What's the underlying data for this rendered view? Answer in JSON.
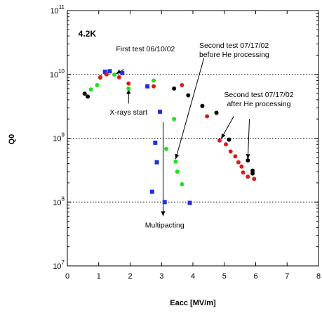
{
  "chart_data": {
    "type": "scatter",
    "title": "",
    "xlabel": "Eacc [MV/m]",
    "ylabel": "Q0",
    "x_scale": "linear",
    "y_scale": "log",
    "xlim": [
      0,
      8
    ],
    "ylim": [
      10000000.0,
      100000000000.0
    ],
    "x_ticks": [
      "0",
      "1",
      "2",
      "3",
      "4",
      "5",
      "6",
      "7",
      "8"
    ],
    "y_ticks": [
      {
        "value": 10000000.0,
        "base": "10",
        "exp": "7"
      },
      {
        "value": 100000000.0,
        "base": "10",
        "exp": "8"
      },
      {
        "value": 1000000000.0,
        "base": "10",
        "exp": "9"
      },
      {
        "value": 10000000000.0,
        "base": "10",
        "exp": "10"
      },
      {
        "value": 100000000000.0,
        "base": "10",
        "exp": "11"
      }
    ],
    "grid": "horizontal dotted at each decade",
    "series": [
      {
        "name": "",
        "color": "#1f2fe0",
        "marker": "square",
        "points": [
          [
            1.2,
            11000000000.0
          ],
          [
            1.35,
            11200000000.0
          ],
          [
            1.75,
            10500000000.0
          ],
          [
            2.55,
            6500000000.0
          ],
          [
            2.95,
            2600000000.0
          ],
          [
            2.8,
            850000000.0
          ],
          [
            2.85,
            420000000.0
          ],
          [
            2.7,
            145000000.0
          ],
          [
            3.1,
            100000000.0
          ],
          [
            3.9,
            97000000.0
          ]
        ]
      },
      {
        "name": "",
        "color": "#22e01a",
        "marker": "circle",
        "points": [
          [
            0.75,
            5800000000.0
          ],
          [
            0.95,
            6800000000.0
          ],
          [
            1.05,
            8800000000.0
          ],
          [
            1.5,
            9900000000.0
          ],
          [
            1.95,
            6000000000.0
          ],
          [
            2.75,
            8000000000.0
          ],
          [
            3.15,
            680000000.0
          ],
          [
            3.45,
            430000000.0
          ],
          [
            3.5,
            300000000.0
          ],
          [
            3.65,
            190000000.0
          ],
          [
            3.4,
            2000000000.0
          ]
        ]
      },
      {
        "name": "",
        "color": "#000000",
        "marker": "circle",
        "points": [
          [
            0.55,
            5000000000.0
          ],
          [
            0.65,
            4500000000.0
          ],
          [
            3.4,
            6000000000.0
          ],
          [
            3.85,
            4700000000.0
          ],
          [
            4.3,
            3200000000.0
          ],
          [
            4.75,
            2500000000.0
          ],
          [
            5.15,
            950000000.0
          ],
          [
            5.75,
            450000000.0
          ],
          [
            5.9,
            310000000.0
          ],
          [
            5.9,
            280000000.0
          ]
        ]
      },
      {
        "name": "",
        "color": "#e01a1a",
        "marker": "circle",
        "points": [
          [
            1.05,
            9000000000.0
          ],
          [
            1.25,
            10000000000.0
          ],
          [
            1.65,
            9000000000.0
          ],
          [
            1.95,
            7200000000.0
          ],
          [
            2.75,
            6500000000.0
          ],
          [
            3.65,
            6800000000.0
          ],
          [
            4.45,
            2200000000.0
          ],
          [
            4.85,
            920000000.0
          ],
          [
            5.05,
            800000000.0
          ],
          [
            5.2,
            620000000.0
          ],
          [
            5.35,
            520000000.0
          ],
          [
            5.45,
            420000000.0
          ],
          [
            5.55,
            360000000.0
          ],
          [
            5.6,
            290000000.0
          ],
          [
            5.75,
            250000000.0
          ],
          [
            5.95,
            230000000.0
          ]
        ]
      }
    ],
    "annotations": [
      {
        "lines": [
          "4.2K"
        ],
        "bold": true,
        "x": 0.35,
        "y": 39000000000.0,
        "anchor": "start"
      },
      {
        "lines": [
          "First test 06/10/02"
        ],
        "x": 1.55,
        "y": 23000000000.0,
        "anchor": "start"
      },
      {
        "lines": [
          "Second test 07/17/02",
          "before He processing"
        ],
        "x": 4.2,
        "y": 26000000000.0,
        "anchor": "start"
      },
      {
        "lines": [
          "X-rays start"
        ],
        "x": 1.95,
        "y": 2350000000.0,
        "anchor": "middle"
      },
      {
        "lines": [
          "Second test 07/17/02",
          "after He processing"
        ],
        "x": 6.1,
        "y": 4400000000.0,
        "anchor": "middle"
      },
      {
        "lines": [
          "Multipacting"
        ],
        "x": 3.1,
        "y": 40000000.0,
        "anchor": "middle"
      }
    ],
    "arrows": [
      {
        "from": [
          1.8,
          12000000000.0
        ],
        "to": [
          1.55,
          10200000000.0
        ]
      },
      {
        "from": [
          1.95,
          3500000000.0
        ],
        "to": [
          1.95,
          5900000000.0
        ]
      },
      {
        "from": [
          4.35,
          18000000000.0
        ],
        "to": [
          3.45,
          470000000.0
        ]
      },
      {
        "from": [
          5.3,
          2200000000.0
        ],
        "to": [
          4.9,
          980000000.0
        ]
      },
      {
        "from": [
          5.8,
          2000000000.0
        ],
        "to": [
          5.75,
          470000000.0
        ]
      },
      {
        "from": [
          3.05,
          1800000000.0
        ],
        "to": [
          3.05,
          60000000.0
        ]
      }
    ]
  }
}
